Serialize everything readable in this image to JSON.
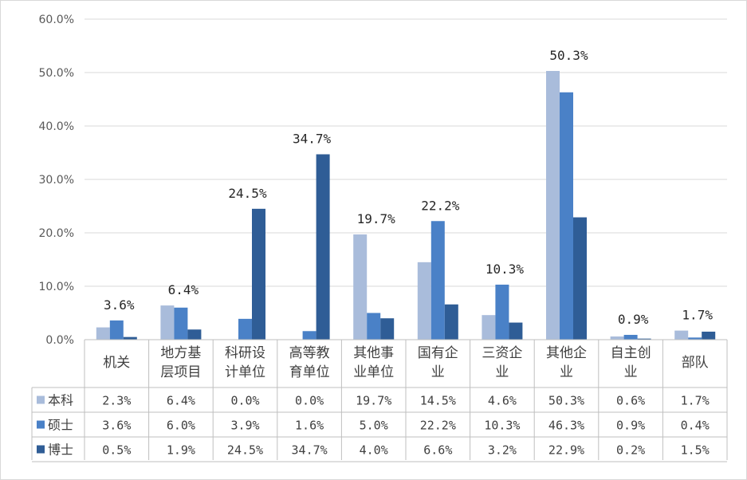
{
  "chart_data": {
    "type": "bar",
    "categories": [
      [
        "机关"
      ],
      [
        "地方基",
        "层项目"
      ],
      [
        "科研设",
        "计单位"
      ],
      [
        "高等教",
        "育单位"
      ],
      [
        "其他事",
        "业单位"
      ],
      [
        "国有企",
        "业"
      ],
      [
        "三资企",
        "业"
      ],
      [
        "其他企",
        "业"
      ],
      [
        "自主创",
        "业"
      ],
      [
        "部队"
      ]
    ],
    "series": [
      {
        "name": "本科",
        "color": "#a9bcdb",
        "values": [
          2.3,
          6.4,
          0.0,
          0.0,
          19.7,
          14.5,
          4.6,
          50.3,
          0.6,
          1.7
        ],
        "labels": [
          "2.3%",
          "6.4%",
          "0.0%",
          "0.0%",
          "19.7%",
          "14.5%",
          "4.6%",
          "50.3%",
          "0.6%",
          "1.7%"
        ]
      },
      {
        "name": "硕士",
        "color": "#4a81c7",
        "values": [
          3.6,
          6.0,
          3.9,
          1.6,
          5.0,
          22.2,
          10.3,
          46.3,
          0.9,
          0.4
        ],
        "labels": [
          "3.6%",
          "6.0%",
          "3.9%",
          "1.6%",
          "5.0%",
          "22.2%",
          "10.3%",
          "46.3%",
          "0.9%",
          "0.4%"
        ]
      },
      {
        "name": "博士",
        "color": "#2f5d96",
        "values": [
          0.5,
          1.9,
          24.5,
          34.7,
          4.0,
          6.6,
          3.2,
          22.9,
          0.2,
          1.5
        ],
        "labels": [
          "0.5%",
          "1.9%",
          "24.5%",
          "34.7%",
          "4.0%",
          "6.6%",
          "3.2%",
          "22.9%",
          "0.2%",
          "1.5%"
        ]
      }
    ],
    "annotations": [
      {
        "category": 0,
        "text": "3.6%"
      },
      {
        "category": 1,
        "text": "6.4%"
      },
      {
        "category": 2,
        "text": "24.5%"
      },
      {
        "category": 3,
        "text": "34.7%"
      },
      {
        "category": 4,
        "text": "19.7%"
      },
      {
        "category": 5,
        "text": "22.2%"
      },
      {
        "category": 6,
        "text": "10.3%"
      },
      {
        "category": 7,
        "text": "50.3%"
      },
      {
        "category": 8,
        "text": "0.9%"
      },
      {
        "category": 9,
        "text": "1.7%"
      }
    ],
    "y_ticks": [
      "0.0%",
      "10.0%",
      "20.0%",
      "30.0%",
      "40.0%",
      "50.0%",
      "60.0%"
    ],
    "ylim": [
      0,
      60
    ],
    "grid": true,
    "data_table": true,
    "legend": "data-table-keys"
  }
}
